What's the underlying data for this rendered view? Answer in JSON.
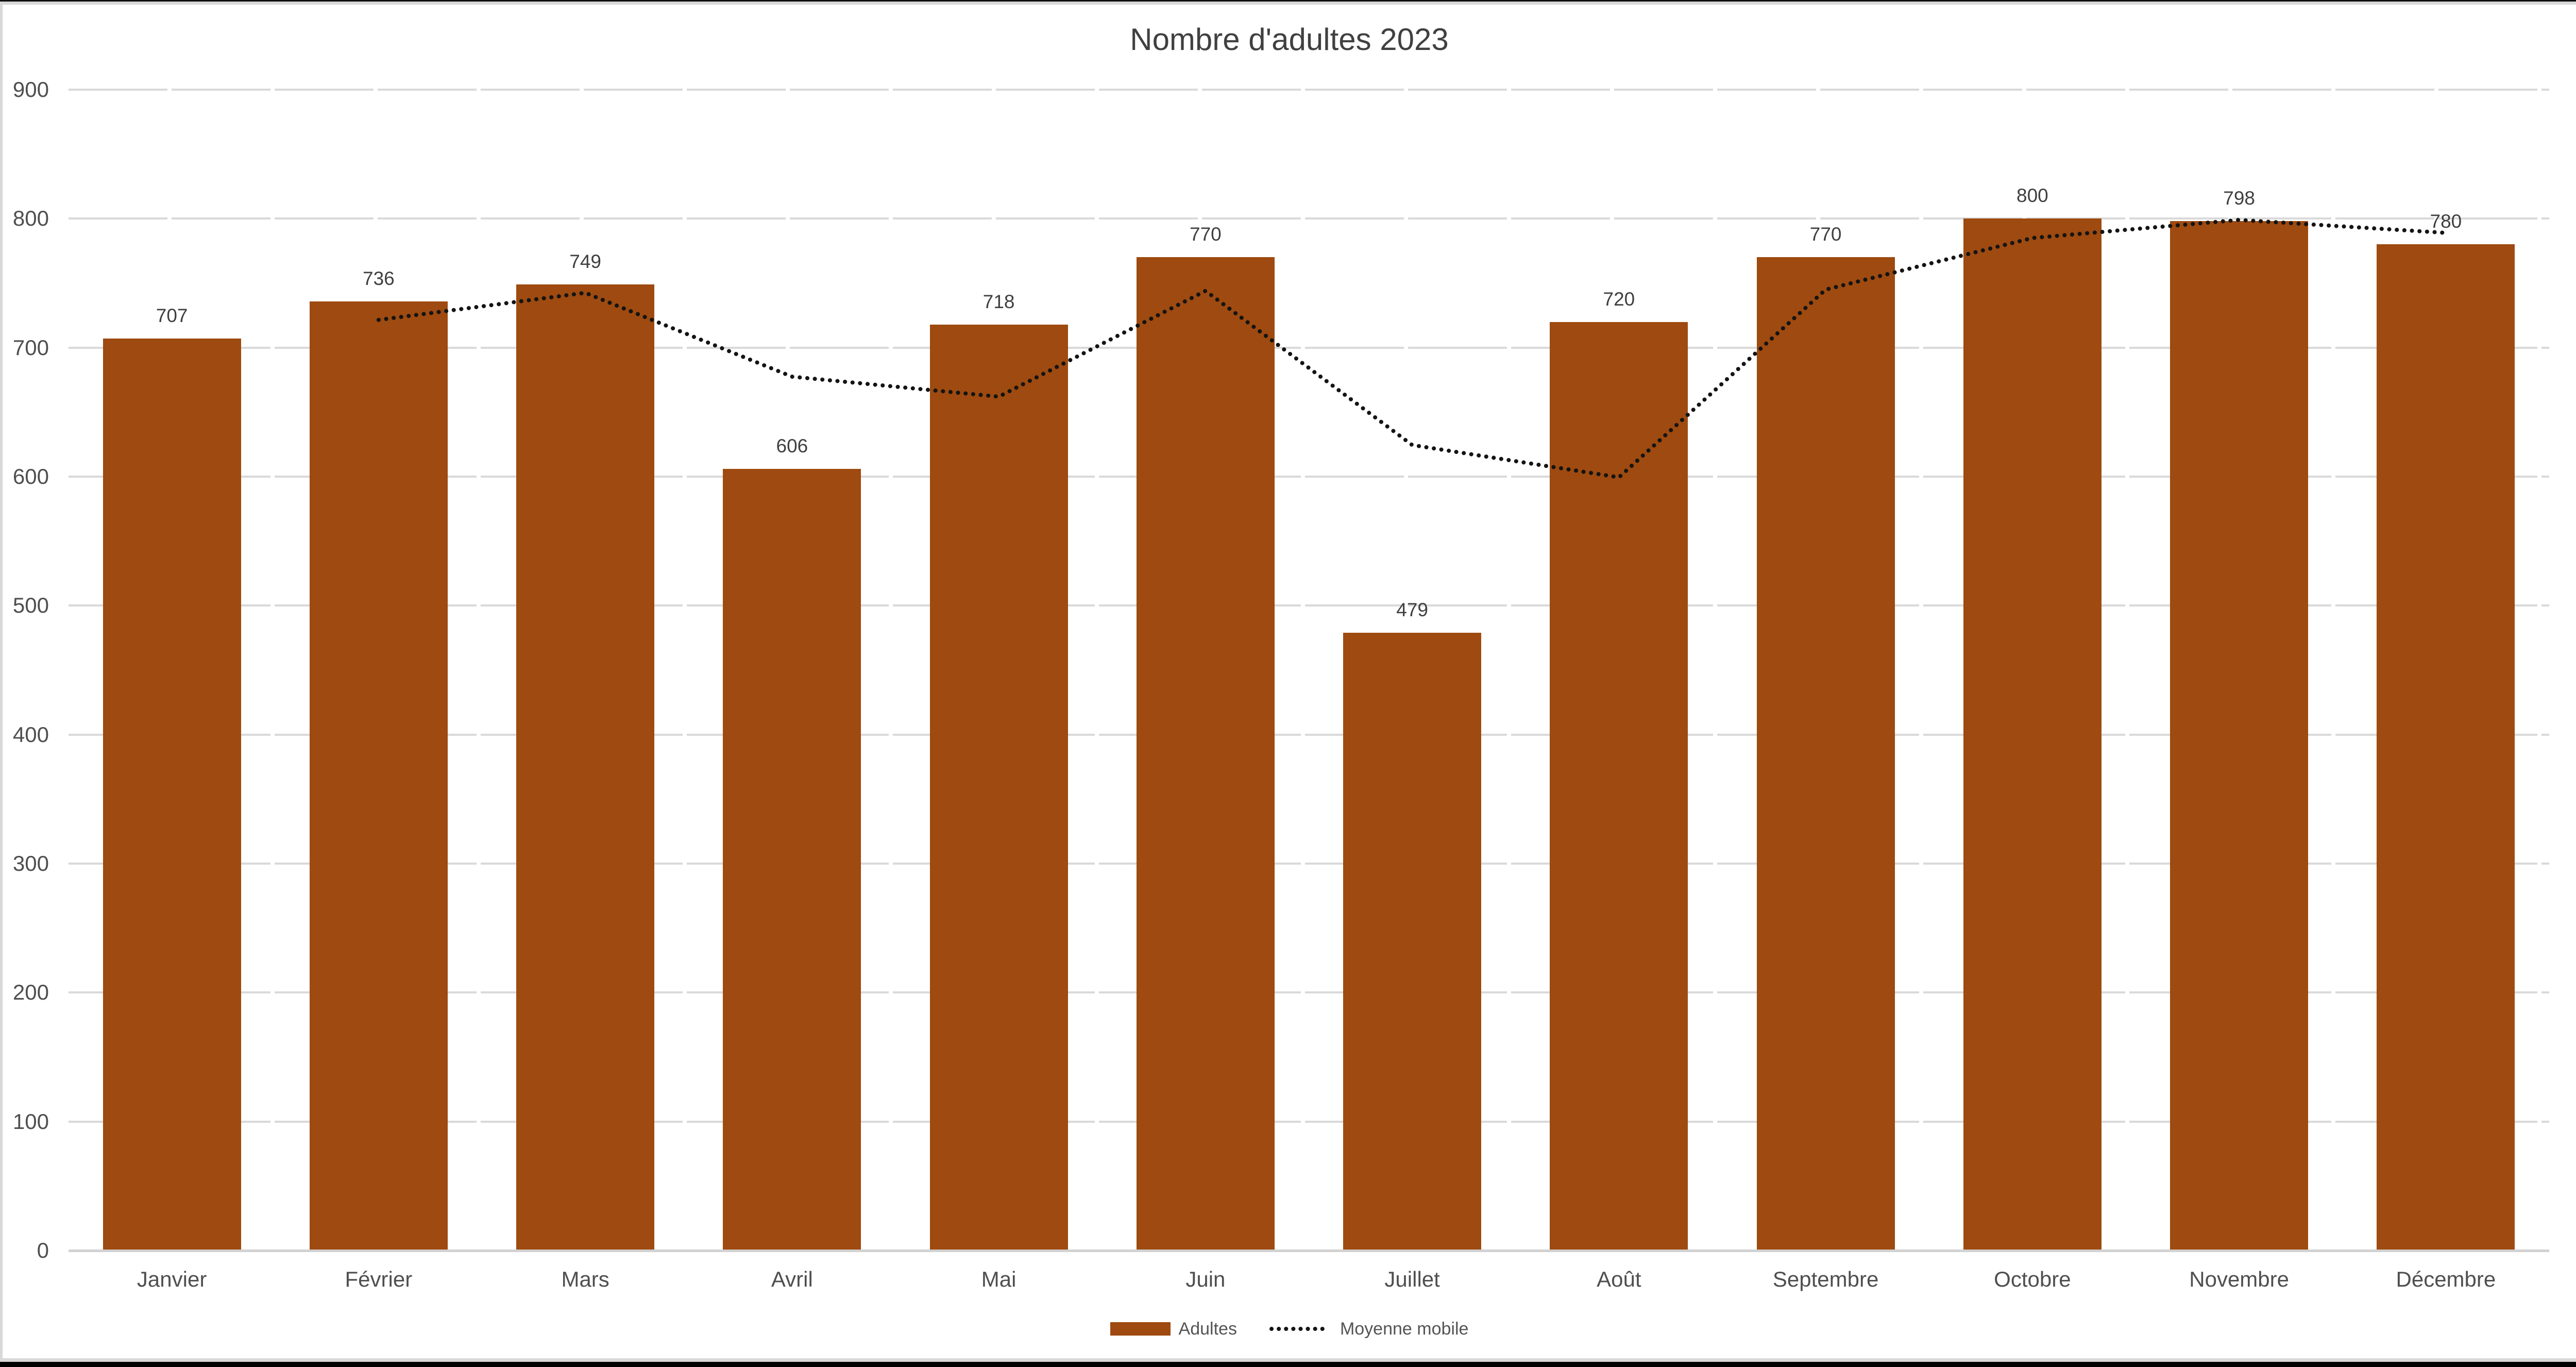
{
  "title": "Nombre d'adultes 2023",
  "legend": {
    "bar_series_label": "Adultes",
    "line_series_label": "Moyenne mobile"
  },
  "colors": {
    "bar": "#9E4A10",
    "line": "#141414",
    "grid": "#D9D9D9",
    "axis": "#D1D1D1",
    "tick_text": "#4F4F4F",
    "title_text": "#404040"
  },
  "chart_data": {
    "type": "bar",
    "title": "Nombre d'adultes 2023",
    "categories": [
      "Janvier",
      "Février",
      "Mars",
      "Avril",
      "Mai",
      "Juin",
      "Juillet",
      "Août",
      "Septembre",
      "Octobre",
      "Novembre",
      "Décembre"
    ],
    "series": [
      {
        "name": "Adultes",
        "type": "bar",
        "color": "#9E4A10",
        "values": [
          707,
          736,
          749,
          606,
          718,
          770,
          479,
          720,
          770,
          800,
          798,
          780
        ],
        "data_labels_shown": true
      },
      {
        "name": "Moyenne mobile",
        "type": "line",
        "line_style": "dotted",
        "color": "#141414",
        "values": [
          null,
          721.5,
          742.5,
          677.5,
          662,
          744,
          624.5,
          599.5,
          745,
          785,
          799,
          789
        ]
      }
    ],
    "xlabel": "",
    "ylabel": "",
    "ylim": [
      0,
      900
    ],
    "yticks": [
      0,
      100,
      200,
      300,
      400,
      500,
      600,
      700,
      800,
      900
    ],
    "grid": true,
    "grid_style": "dashed",
    "legend_position": "bottom"
  }
}
